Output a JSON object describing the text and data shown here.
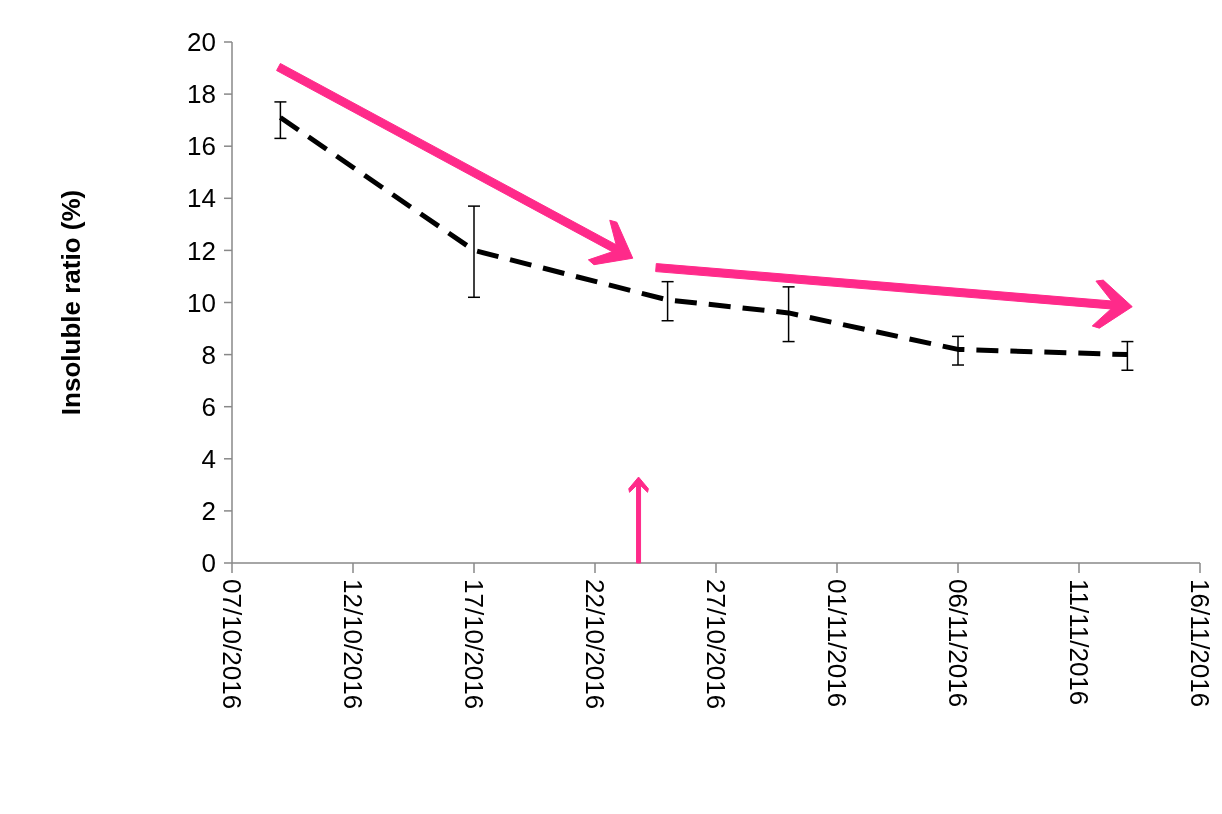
{
  "chart_data": {
    "type": "line",
    "ylabel": "Insoluble ratio (%)",
    "x": [
      "2016-10-09",
      "2016-10-17",
      "2016-10-25",
      "2016-10-30",
      "2016-11-06",
      "2016-11-13"
    ],
    "series": [
      {
        "color": "#000000",
        "values": [
          17.1,
          12.0,
          10.1,
          9.6,
          8.2,
          8.0
        ],
        "errors": [
          [
            16.3,
            17.7
          ],
          [
            10.2,
            13.7
          ],
          [
            9.3,
            10.8
          ],
          [
            8.5,
            10.6
          ],
          [
            7.6,
            8.7
          ],
          [
            7.4,
            8.5
          ]
        ]
      }
    ],
    "line_style": "dashed",
    "marker": "none",
    "grid": false,
    "xlim": [
      "2016-10-07",
      "2016-11-16"
    ],
    "xticks": [
      {
        "value": "2016-10-07",
        "label": "07/10/2016"
      },
      {
        "value": "2016-10-12",
        "label": "12/10/2016"
      },
      {
        "value": "2016-10-17",
        "label": "17/10/2016"
      },
      {
        "value": "2016-10-22",
        "label": "22/10/2016"
      },
      {
        "value": "2016-10-27",
        "label": "27/10/2016"
      },
      {
        "value": "2016-11-01",
        "label": "01/11/2016"
      },
      {
        "value": "2016-11-06",
        "label": "06/11/2016"
      },
      {
        "value": "2016-11-11",
        "label": "11/11/2016"
      },
      {
        "value": "2016-11-16",
        "label": "16/11/2016"
      }
    ],
    "ylim": [
      0,
      20
    ],
    "yticks": [
      0,
      2,
      4,
      6,
      8,
      10,
      12,
      14,
      16,
      18,
      20
    ]
  }
}
